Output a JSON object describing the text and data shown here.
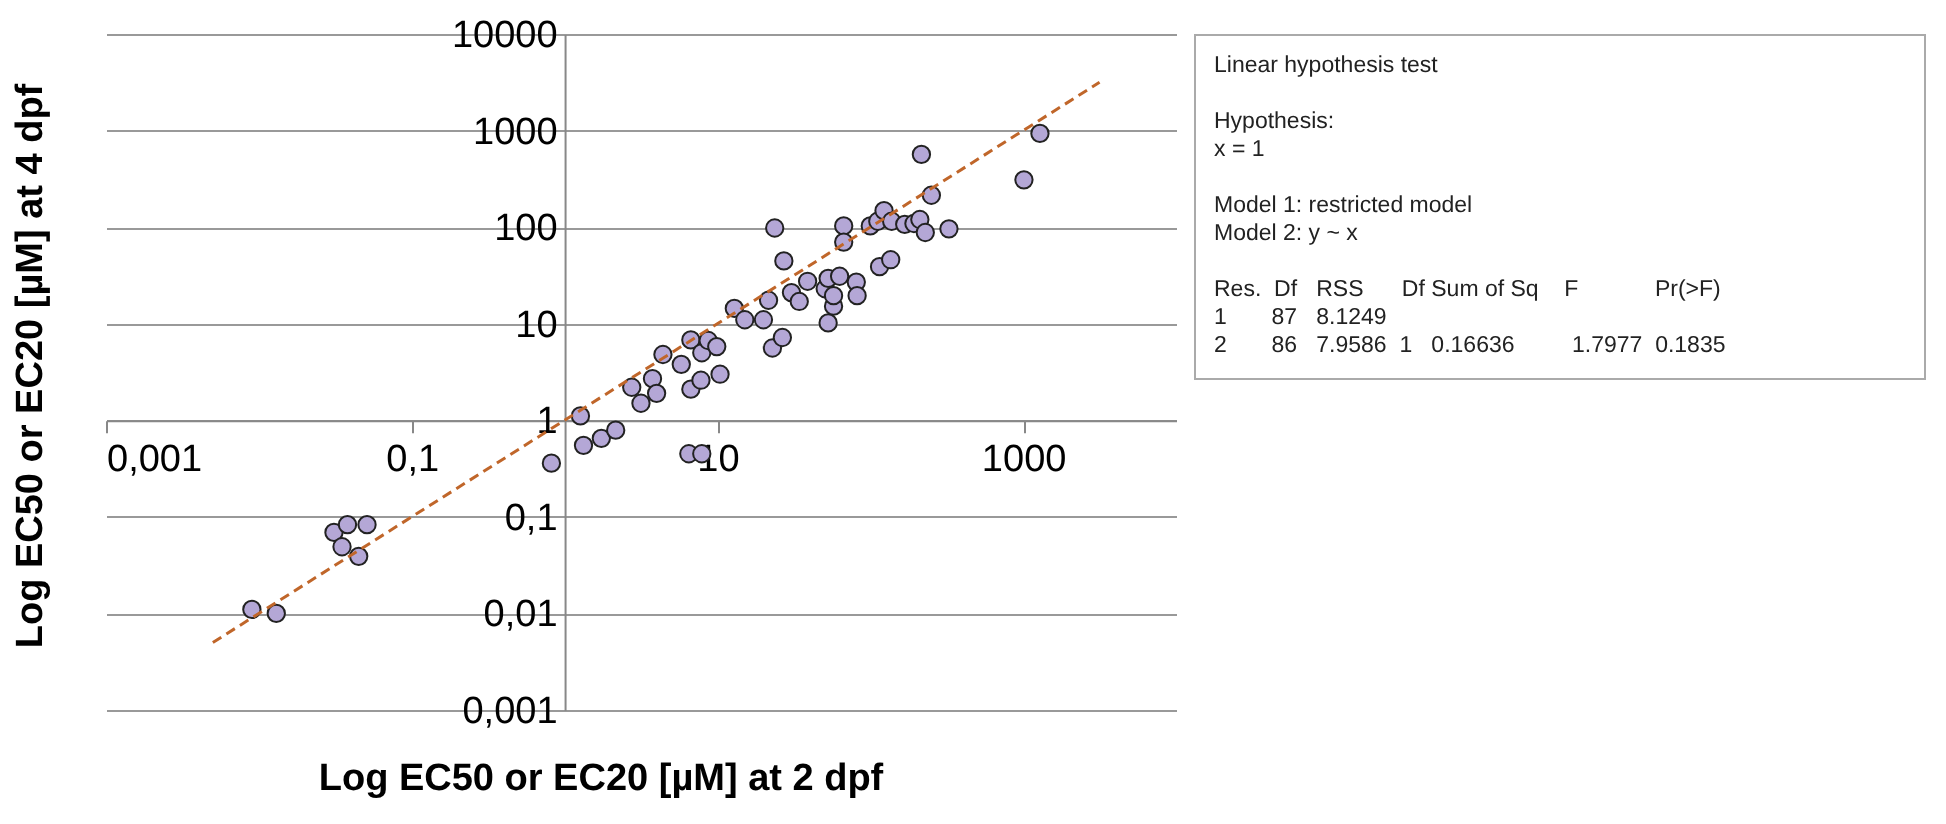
{
  "chart_data": {
    "type": "scatter",
    "xlabel": "Log EC50 or EC20 [µM] at 2 dpf",
    "ylabel": "Log EC50 or EC20 [µM] at 4 dpf",
    "xlim": [
      0.001,
      10000
    ],
    "ylim": [
      0.001,
      10000
    ],
    "xticks": [
      {
        "value": 0.001,
        "label": "0,001"
      },
      {
        "value": 0.1,
        "label": "0,1"
      },
      10,
      1000
    ],
    "yticks": [
      {
        "value": 0.001,
        "label": "0,001"
      },
      {
        "value": 0.01,
        "label": "0,01"
      },
      {
        "value": 0.1,
        "label": "0,1"
      },
      1,
      10,
      100,
      1000,
      10000
    ],
    "log": "xy",
    "grid": "y",
    "series": [
      {
        "type": "scatter",
        "marker": "circle",
        "color": "#b4a7d6",
        "x": [
          0.009,
          0.013,
          0.031,
          0.038,
          0.051,
          0.035,
          0.045,
          0.82,
          1.27,
          1.33,
          1.74,
          2.16,
          6.5,
          7.9,
          2.75,
          3.16,
          3.76,
          4.0,
          4.4,
          5.8,
          6.7,
          6.7,
          7.8,
          7.9,
          8.7,
          9.9,
          10.4,
          12.9,
          15.1,
          20,
          21.6,
          22.9,
          26.6,
          23.7,
          27.2,
          30.5,
          34.3,
          38.9,
          50.7,
          53,
          53,
          57.5,
          57.5,
          63,
          67,
          67,
          81,
          82,
          100,
          112,
          123,
          115,
          136,
          138,
          168,
          193,
          216,
          211,
          229,
          251,
          327,
          1012,
          1288
        ],
        "values": [
          0.011,
          0.01,
          0.069,
          0.083,
          0.083,
          0.049,
          0.039,
          0.36,
          1.11,
          0.55,
          0.65,
          0.79,
          0.45,
          0.45,
          2.2,
          1.5,
          2.7,
          1.9,
          4.8,
          3.8,
          6.8,
          2.1,
          2.6,
          5.0,
          6.7,
          5.8,
          3.0,
          14.4,
          11,
          11,
          17.5,
          5.6,
          7.2,
          98,
          44.7,
          21,
          17,
          27.5,
          23,
          29.5,
          10.2,
          15.2,
          19.5,
          31,
          103,
          70,
          27,
          19.5,
          103,
          115,
          148,
          39,
          46,
          115,
          107,
          109,
          566,
          120,
          88,
          214,
          96,
          309,
          934
        ]
      },
      {
        "type": "line",
        "color": "#c0662a",
        "line_style": "dashed",
        "x": [
          0.005,
          3162
        ],
        "values": [
          0.005,
          3162
        ]
      }
    ],
    "annotations": [
      "Linear hypothesis test",
      "Hypothesis:\nx = 1",
      "Model 1: restricted model\nModel 2: y ~ x",
      "Res.  Df   RSS      Df Sum of Sq    F            Pr(>F)\n1       87   8.1249\n2       86   7.9586  1   0.16636         1.7977  0.1835"
    ]
  }
}
